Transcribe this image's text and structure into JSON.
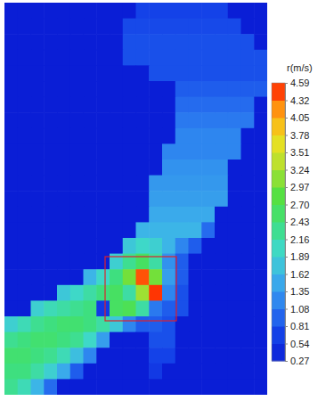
{
  "chart_data": {
    "type": "heatmap",
    "title": "r(m/s)",
    "tick_labels": false,
    "cells": [
      [
        0.27,
        0.27,
        0.27,
        0.27,
        0.27,
        0.27,
        0.27,
        0.27,
        0.27,
        0.27,
        0.7,
        0.7,
        0.7,
        0.7,
        0.7,
        0.7,
        0.7,
        0.27,
        0.27,
        0.27
      ],
      [
        0.27,
        0.27,
        0.27,
        0.27,
        0.27,
        0.27,
        0.27,
        0.27,
        0.27,
        0.75,
        0.75,
        0.75,
        0.75,
        0.75,
        0.75,
        0.75,
        0.75,
        0.75,
        0.27,
        0.27
      ],
      [
        0.27,
        0.27,
        0.27,
        0.27,
        0.27,
        0.27,
        0.27,
        0.27,
        0.27,
        0.8,
        0.8,
        0.8,
        0.8,
        0.8,
        0.8,
        0.8,
        0.8,
        0.8,
        0.8,
        0.27
      ],
      [
        0.27,
        0.27,
        0.27,
        0.27,
        0.27,
        0.27,
        0.27,
        0.27,
        0.27,
        0.8,
        0.8,
        0.8,
        0.8,
        0.8,
        0.8,
        0.8,
        0.8,
        0.8,
        0.8,
        0.8
      ],
      [
        0.27,
        0.27,
        0.27,
        0.27,
        0.27,
        0.27,
        0.27,
        0.27,
        0.27,
        0.27,
        0.27,
        0.8,
        0.8,
        0.8,
        0.8,
        0.8,
        0.8,
        0.8,
        0.8,
        0.8
      ],
      [
        0.27,
        0.27,
        0.27,
        0.27,
        0.27,
        0.27,
        0.27,
        0.27,
        0.27,
        0.27,
        0.27,
        0.27,
        0.27,
        0.9,
        0.9,
        0.9,
        0.9,
        0.9,
        0.9,
        0.9
      ],
      [
        0.27,
        0.27,
        0.27,
        0.27,
        0.27,
        0.27,
        0.27,
        0.27,
        0.27,
        0.27,
        0.27,
        0.27,
        0.27,
        1.0,
        1.0,
        1.0,
        1.0,
        1.0,
        1.0,
        0.27
      ],
      [
        0.27,
        0.27,
        0.27,
        0.27,
        0.27,
        0.27,
        0.27,
        0.27,
        0.27,
        0.27,
        0.27,
        0.27,
        0.27,
        1.1,
        1.1,
        1.1,
        1.1,
        1.1,
        1.1,
        0.27
      ],
      [
        0.27,
        0.27,
        0.27,
        0.27,
        0.27,
        0.27,
        0.27,
        0.27,
        0.27,
        0.27,
        0.27,
        0.27,
        0.27,
        1.2,
        1.2,
        1.2,
        1.2,
        1.2,
        0.27,
        0.27
      ],
      [
        0.27,
        0.27,
        0.27,
        0.27,
        0.27,
        0.27,
        0.27,
        0.27,
        0.27,
        0.27,
        0.27,
        0.27,
        1.2,
        1.2,
        1.2,
        1.2,
        1.2,
        1.2,
        0.27,
        0.27
      ],
      [
        0.27,
        0.27,
        0.27,
        0.27,
        0.27,
        0.27,
        0.27,
        0.27,
        0.27,
        0.27,
        0.27,
        0.27,
        1.3,
        1.3,
        1.3,
        1.3,
        1.3,
        0.27,
        0.27,
        0.27
      ],
      [
        0.27,
        0.27,
        0.27,
        0.27,
        0.27,
        0.27,
        0.27,
        0.27,
        0.27,
        0.27,
        0.27,
        1.35,
        1.35,
        1.35,
        1.35,
        1.35,
        1.35,
        0.27,
        0.27,
        0.27
      ],
      [
        0.27,
        0.27,
        0.27,
        0.27,
        0.27,
        0.27,
        0.27,
        0.27,
        0.27,
        0.27,
        0.27,
        1.4,
        1.4,
        1.4,
        1.4,
        1.4,
        1.4,
        0.27,
        0.27,
        0.27
      ],
      [
        0.27,
        0.27,
        0.27,
        0.27,
        0.27,
        0.27,
        0.27,
        0.27,
        0.27,
        0.27,
        0.27,
        1.5,
        1.5,
        1.5,
        1.5,
        1.5,
        0.27,
        0.27,
        0.27,
        0.27
      ],
      [
        0.27,
        0.27,
        0.27,
        0.27,
        0.27,
        0.27,
        0.27,
        0.27,
        0.27,
        0.27,
        1.6,
        1.6,
        1.6,
        1.6,
        1.6,
        1.0,
        0.27,
        0.27,
        0.27,
        0.27
      ],
      [
        0.27,
        0.27,
        0.27,
        0.27,
        0.27,
        0.27,
        0.27,
        0.27,
        0.27,
        1.8,
        2.0,
        1.9,
        1.6,
        1.2,
        0.9,
        0.27,
        0.27,
        0.27,
        0.27,
        0.27
      ],
      [
        0.27,
        0.27,
        0.27,
        0.27,
        0.27,
        0.27,
        0.27,
        0.27,
        1.9,
        2.3,
        2.6,
        2.2,
        1.3,
        0.9,
        0.27,
        0.27,
        0.27,
        0.27,
        0.27,
        0.27
      ],
      [
        0.27,
        0.27,
        0.27,
        0.27,
        0.27,
        0.27,
        1.6,
        2.0,
        2.4,
        3.0,
        4.4,
        3.0,
        1.4,
        0.9,
        0.27,
        0.27,
        0.27,
        0.27,
        0.27,
        0.27
      ],
      [
        0.27,
        0.27,
        0.27,
        0.27,
        1.8,
        2.0,
        2.2,
        2.4,
        2.6,
        2.2,
        3.2,
        4.5,
        1.2,
        0.8,
        0.27,
        0.27,
        0.27,
        0.27,
        0.27,
        0.27
      ],
      [
        0.27,
        0.27,
        1.9,
        2.1,
        2.2,
        2.3,
        2.4,
        0.6,
        2.6,
        2.7,
        2.2,
        1.1,
        0.9,
        0.8,
        0.27,
        0.27,
        0.27,
        0.27,
        0.27,
        0.27
      ],
      [
        1.9,
        2.1,
        2.3,
        2.4,
        2.5,
        2.5,
        2.4,
        2.2,
        1.8,
        1.2,
        0.9,
        0.9,
        0.8,
        0.27,
        0.27,
        0.27,
        0.27,
        0.27,
        0.27,
        0.27
      ],
      [
        2.3,
        2.4,
        2.5,
        2.5,
        2.4,
        2.3,
        2.0,
        1.4,
        0.27,
        0.27,
        0.27,
        0.8,
        0.8,
        0.27,
        0.27,
        0.27,
        0.27,
        0.27,
        0.27,
        0.27
      ],
      [
        2.5,
        2.5,
        2.4,
        2.3,
        2.1,
        1.7,
        1.2,
        0.27,
        0.27,
        0.27,
        0.27,
        0.7,
        0.7,
        0.27,
        0.27,
        0.27,
        0.27,
        0.27,
        0.27,
        0.27
      ],
      [
        2.4,
        2.4,
        2.2,
        1.9,
        1.5,
        0.9,
        0.27,
        0.27,
        0.27,
        0.27,
        0.27,
        0.6,
        0.27,
        0.27,
        0.27,
        0.27,
        0.27,
        0.27,
        0.27,
        0.27
      ],
      [
        2.3,
        2.1,
        1.6,
        1.0,
        0.27,
        0.27,
        0.27,
        0.27,
        0.27,
        0.27,
        0.27,
        0.27,
        0.27,
        0.27,
        0.27,
        0.27,
        0.27,
        0.27,
        0.27,
        0.27
      ]
    ],
    "colorbar": {
      "range": [
        0.27,
        4.59
      ],
      "ticks": [
        0.27,
        0.54,
        0.81,
        1.08,
        1.35,
        1.62,
        1.89,
        2.16,
        2.43,
        {
          "value": 2.7,
          "label": "2.70"
        },
        2.97,
        3.24,
        3.51,
        3.78,
        4.05,
        4.32,
        4.59
      ]
    }
  }
}
